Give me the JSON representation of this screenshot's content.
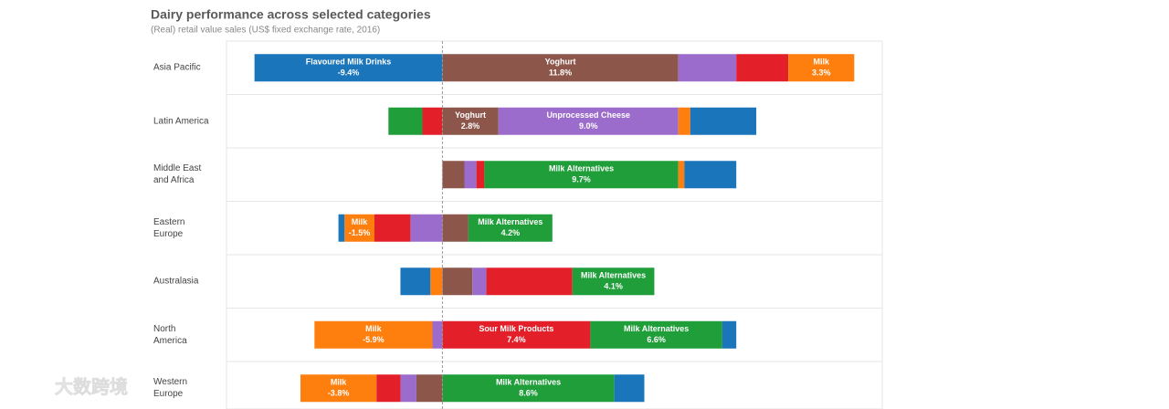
{
  "chart_data": {
    "type": "diverging-stacked-bar",
    "title": "Dairy performance across selected categories",
    "subtitle": "(Real) retail value sales (US$ fixed exchange rate, 2016)",
    "categories": [
      "Asia Pacific",
      "Latin America",
      "Middle East\nand Africa",
      "Eastern\nEurope",
      "Australasia",
      "North\nAmerica",
      "Western\nEurope"
    ],
    "xlim": [
      -10.8,
      22
    ],
    "series": [
      {
        "name": "Yoghurt",
        "color": "#8c564b",
        "values": [
          11.8,
          2.8,
          1.1,
          1.3,
          1.5,
          null,
          -1.3
        ],
        "value_labels": [
          "11.8%",
          "2.8%",
          null,
          null,
          null,
          null,
          null
        ]
      },
      {
        "name": "Unprocessed Cheese",
        "color": "#9b6ccc",
        "values": [
          2.9,
          9.0,
          0.6,
          -1.6,
          0.7,
          -0.5,
          -0.8
        ],
        "value_labels": [
          null,
          "9.0%",
          null,
          null,
          null,
          null,
          null
        ]
      },
      {
        "name": "Sour Milk Products",
        "color": "#e3202a",
        "values": [
          2.6,
          -1.0,
          0.4,
          -1.8,
          4.3,
          7.4,
          -1.2
        ],
        "value_labels": [
          null,
          null,
          null,
          null,
          null,
          "7.4%",
          null
        ]
      },
      {
        "name": "Milk Alternatives",
        "color": "#1f9e3a",
        "values": [
          null,
          -1.7,
          9.7,
          4.2,
          4.1,
          6.6,
          8.6
        ],
        "value_labels": [
          null,
          null,
          "9.7%",
          "4.2%",
          "4.1%",
          "6.6%",
          "8.6%"
        ]
      },
      {
        "name": "Milk",
        "color": "#ff7f0e",
        "values": [
          3.3,
          0.6,
          0.3,
          -1.5,
          -0.6,
          -5.9,
          -3.8
        ],
        "value_labels": [
          "3.3%",
          null,
          null,
          "-1.5%",
          null,
          "-5.9%",
          "-3.8%"
        ]
      },
      {
        "name": "Flavoured Milk Drinks",
        "color": "#1a75bb",
        "values": [
          -9.4,
          3.3,
          2.6,
          -0.3,
          -1.5,
          0.7,
          1.5
        ],
        "value_labels": [
          "-9.4%",
          null,
          null,
          null,
          null,
          null,
          null
        ]
      }
    ]
  },
  "watermark": "大数跨境"
}
